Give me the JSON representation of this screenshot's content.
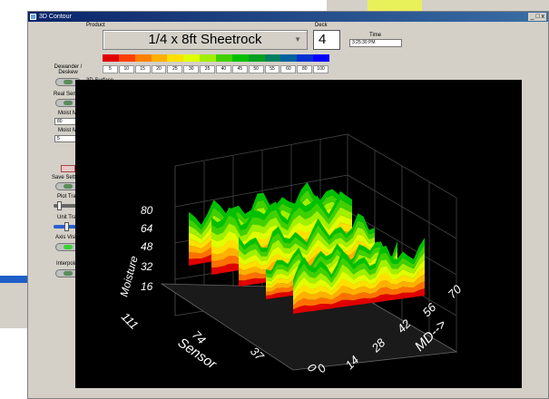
{
  "window": {
    "title": "3D Contour",
    "controls": "_ □ x"
  },
  "header": {
    "product_label": "Product",
    "product_value": "1/4 x 8ft Sheetrock",
    "deck_label": "Deck",
    "deck_value": "4",
    "time_label": "Time",
    "time_value": "3:25:30 PM"
  },
  "scale_values": [
    "5",
    "10",
    "15",
    "20",
    "25",
    "30",
    "35",
    "40",
    "45",
    "50",
    "55",
    "60",
    "80",
    "100"
  ],
  "colors": [
    "#e00000",
    "#ff4000",
    "#ff8000",
    "#ffb000",
    "#ffe000",
    "#e0ff00",
    "#a0f000",
    "#40d000",
    "#00c000",
    "#00a020",
    "#008060",
    "#0060a0",
    "#0030d0",
    "#0000ff"
  ],
  "section_label": "3D Surface",
  "sidebar": {
    "dewander_label": "Dewander / Deskew",
    "real_sensors_label": "Real Sensors",
    "moist_max_label": "Moist Max",
    "moist_max_value": "80",
    "moist_min_label": "Moist Min",
    "moist_min_value": "5",
    "save_settings_label": "Save Settings",
    "plot_trans_label": "Plot Trans",
    "unit_trans_label": "Unit Trans",
    "axis_visible_label": "Axis Visible",
    "interpolate_label": "Interpolate"
  },
  "plot": {
    "z_label": "Moisture",
    "z_ticks": [
      "80",
      "64",
      "48",
      "32",
      "16"
    ],
    "sensor_label": "Sensor",
    "sensor_ticks": [
      "111",
      "74",
      "37",
      "0"
    ],
    "md_label": "MD-->",
    "md_ticks": [
      "0",
      "14",
      "28",
      "42",
      "56",
      "70"
    ]
  }
}
